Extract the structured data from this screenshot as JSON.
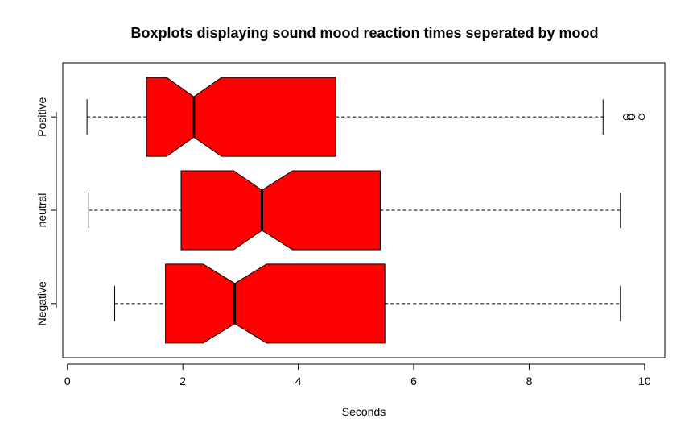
{
  "chart_data": {
    "type": "boxplot",
    "title": "Boxplots displaying sound mood reaction times seperated by mood",
    "xlabel": "Seconds",
    "ylabel": "",
    "xlim": [
      -0.08,
      10.35
    ],
    "x_ticks": [
      0,
      2,
      4,
      6,
      8,
      10
    ],
    "orientation": "horizontal",
    "notch": true,
    "box_color": "#ff0000",
    "grid": false,
    "categories": [
      "Negative",
      "neutral",
      "Positive"
    ],
    "boxes": [
      {
        "name": "Negative",
        "whisker_low": 0.82,
        "q1": 1.7,
        "notch_low": 2.35,
        "median": 2.9,
        "notch_high": 3.45,
        "q3": 5.5,
        "whisker_high": 9.58,
        "outliers": []
      },
      {
        "name": "neutral",
        "whisker_low": 0.37,
        "q1": 1.97,
        "notch_low": 2.88,
        "median": 3.37,
        "notch_high": 3.9,
        "q3": 5.42,
        "whisker_high": 9.58,
        "outliers": []
      },
      {
        "name": "Positive",
        "whisker_low": 0.34,
        "q1": 1.37,
        "notch_low": 1.72,
        "median": 2.19,
        "notch_high": 2.67,
        "q3": 4.65,
        "whisker_high": 9.28,
        "outliers": [
          9.68,
          9.75,
          9.78,
          9.95
        ]
      }
    ]
  }
}
